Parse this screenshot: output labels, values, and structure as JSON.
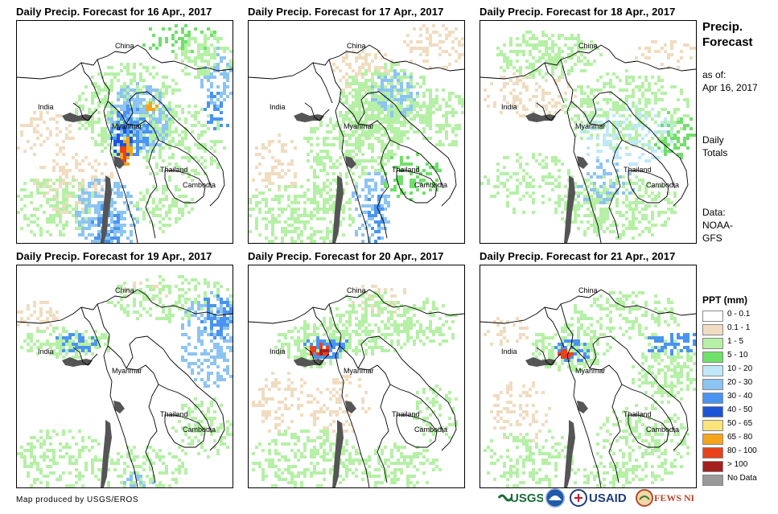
{
  "panels": [
    {
      "title": "Daily Precip. Forecast for 16 Apr., 2017",
      "labels": {
        "china": "China",
        "india": "India",
        "myanmar": "Myanmar",
        "thailand": "Thailand",
        "cambodia": "Cambodia"
      }
    },
    {
      "title": "Daily Precip. Forecast for 17 Apr., 2017",
      "labels": {
        "china": "China",
        "india": "India",
        "myanmar": "Myanmar",
        "thailand": "Thailand",
        "cambodia": "Cambodia"
      }
    },
    {
      "title": "Daily Precip. Forecast for 18 Apr., 2017",
      "labels": {
        "china": "China",
        "india": "India",
        "myanmar": "Myanmar",
        "thailand": "Thailand",
        "cambodia": "Cambodia"
      }
    },
    {
      "title": "Daily Precip. Forecast for 19 Apr., 2017",
      "labels": {
        "china": "China",
        "india": "India",
        "myanmar": "Myanmar",
        "thailand": "Thailand",
        "cambodia": "Cambodia"
      }
    },
    {
      "title": "Daily Precip. Forecast for 20 Apr., 2017",
      "labels": {
        "china": "China",
        "india": "India",
        "myanmar": "Myanmar",
        "thailand": "Thailand",
        "cambodia": "Cambodia"
      }
    },
    {
      "title": "Daily Precip. Forecast for 21 Apr., 2017",
      "labels": {
        "china": "China",
        "india": "India",
        "myanmar": "Myanmar",
        "thailand": "Thailand",
        "cambodia": "Cambodia"
      }
    }
  ],
  "sidebar": {
    "title_line1": "Precip.",
    "title_line2": "Forecast",
    "asof_line1": "as of:",
    "asof_line2": "Apr 16, 2017",
    "totals_line1": "Daily",
    "totals_line2": "Totals",
    "data_line1": "Data:",
    "data_line2": "NOAA-",
    "data_line3": "GFS"
  },
  "legend": {
    "title": "PPT (mm)",
    "items": [
      {
        "label": "0 - 0.1",
        "color": "#ffffff"
      },
      {
        "label": "0.1 - 1",
        "color": "#f0dcc0"
      },
      {
        "label": "1 - 5",
        "color": "#b5f0a6"
      },
      {
        "label": "5 - 10",
        "color": "#6fe06a"
      },
      {
        "label": "10 - 20",
        "color": "#bfe9f8"
      },
      {
        "label": "20 - 30",
        "color": "#8cc4f2"
      },
      {
        "label": "30 - 40",
        "color": "#4a94f0"
      },
      {
        "label": "40 - 50",
        "color": "#1c54d8"
      },
      {
        "label": "50 - 65",
        "color": "#fbe47a"
      },
      {
        "label": "65 - 80",
        "color": "#f5a51c"
      },
      {
        "label": "80 - 100",
        "color": "#e8421c"
      },
      {
        "label": "> 100",
        "color": "#a3201e"
      },
      {
        "label": "No Data",
        "color": "#999999"
      }
    ]
  },
  "credit": "Map produced by USGS/EROS",
  "logos": [
    {
      "text": "USGS",
      "name": "usgs-logo"
    },
    {
      "text": "NOAA",
      "name": "noaa-logo"
    },
    {
      "text": "USAID",
      "name": "usaid-logo"
    },
    {
      "text": "FEWS NET",
      "name": "fewsnet-logo"
    }
  ]
}
